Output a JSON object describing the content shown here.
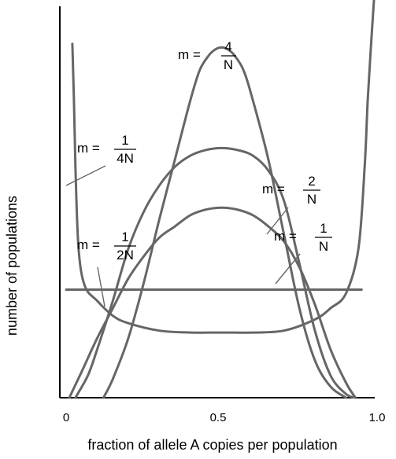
{
  "chart_data": {
    "type": "line",
    "xlabel": "fraction of allele A copies per population",
    "ylabel": "number of populations",
    "xlim": [
      0,
      1
    ],
    "ylim": [
      0,
      100
    ],
    "x_ticks": [
      "0",
      "0.5",
      "1.0"
    ],
    "grid": false,
    "legend": "none",
    "colors": {
      "curve": "#666666",
      "axis": "#000000"
    },
    "series": [
      {
        "label_parts": {
          "prefix": "m =",
          "numerator": "1",
          "denominator": "4N"
        },
        "x": [
          0.02,
          0.025,
          0.03,
          0.04,
          0.06,
          0.1,
          0.15,
          0.2,
          0.3,
          0.4,
          0.5,
          0.6,
          0.7,
          0.8,
          0.85,
          0.9,
          0.94,
          0.96,
          0.97,
          0.98,
          0.99
        ],
        "y": [
          95,
          80,
          62,
          40,
          30,
          26,
          22,
          20,
          18,
          17.5,
          17.5,
          17.5,
          18,
          21,
          24,
          28,
          40,
          62,
          80,
          94,
          107
        ]
      },
      {
        "label_parts": {
          "prefix": "m =",
          "numerator": "1",
          "denominator": "2N"
        },
        "x": [
          0,
          0.2,
          0.4,
          0.6,
          0.8,
          0.95
        ],
        "y": [
          29,
          29,
          29,
          29,
          29,
          29
        ]
      },
      {
        "label_parts": {
          "prefix": "m =",
          "numerator": "1",
          "denominator": "N"
        },
        "x": [
          0.01,
          0.05,
          0.1,
          0.15,
          0.2,
          0.25,
          0.3,
          0.35,
          0.4,
          0.45,
          0.5,
          0.55,
          0.6,
          0.65,
          0.7,
          0.75,
          0.8,
          0.85,
          0.9,
          0.93
        ],
        "y": [
          0,
          7,
          16,
          24,
          32,
          38,
          43,
          46,
          49,
          50.5,
          51,
          50.5,
          49,
          46,
          42,
          35,
          25,
          13,
          4,
          0
        ]
      },
      {
        "label_parts": {
          "prefix": "m =",
          "numerator": "2",
          "denominator": "N"
        },
        "x": [
          0.03,
          0.07,
          0.1,
          0.15,
          0.2,
          0.25,
          0.3,
          0.35,
          0.4,
          0.45,
          0.5,
          0.55,
          0.6,
          0.65,
          0.7,
          0.75,
          0.8,
          0.85,
          0.9,
          0.93
        ],
        "y": [
          0,
          6,
          13,
          26,
          40,
          50,
          57,
          62,
          65,
          66.5,
          67,
          66.5,
          65,
          61,
          53,
          36,
          18,
          6,
          1,
          0
        ]
      },
      {
        "label_parts": {
          "prefix": "m =",
          "numerator": "4",
          "denominator": "N"
        },
        "x": [
          0.12,
          0.15,
          0.2,
          0.25,
          0.3,
          0.35,
          0.4,
          0.43,
          0.46,
          0.48,
          0.5,
          0.52,
          0.54,
          0.57,
          0.6,
          0.65,
          0.7,
          0.75,
          0.8,
          0.85,
          0.9
        ],
        "y": [
          0,
          5,
          16,
          31,
          48,
          64,
          80,
          88,
          92,
          93.5,
          94,
          93.5,
          92,
          88,
          80,
          64,
          44,
          24,
          10,
          3,
          0
        ]
      }
    ]
  }
}
